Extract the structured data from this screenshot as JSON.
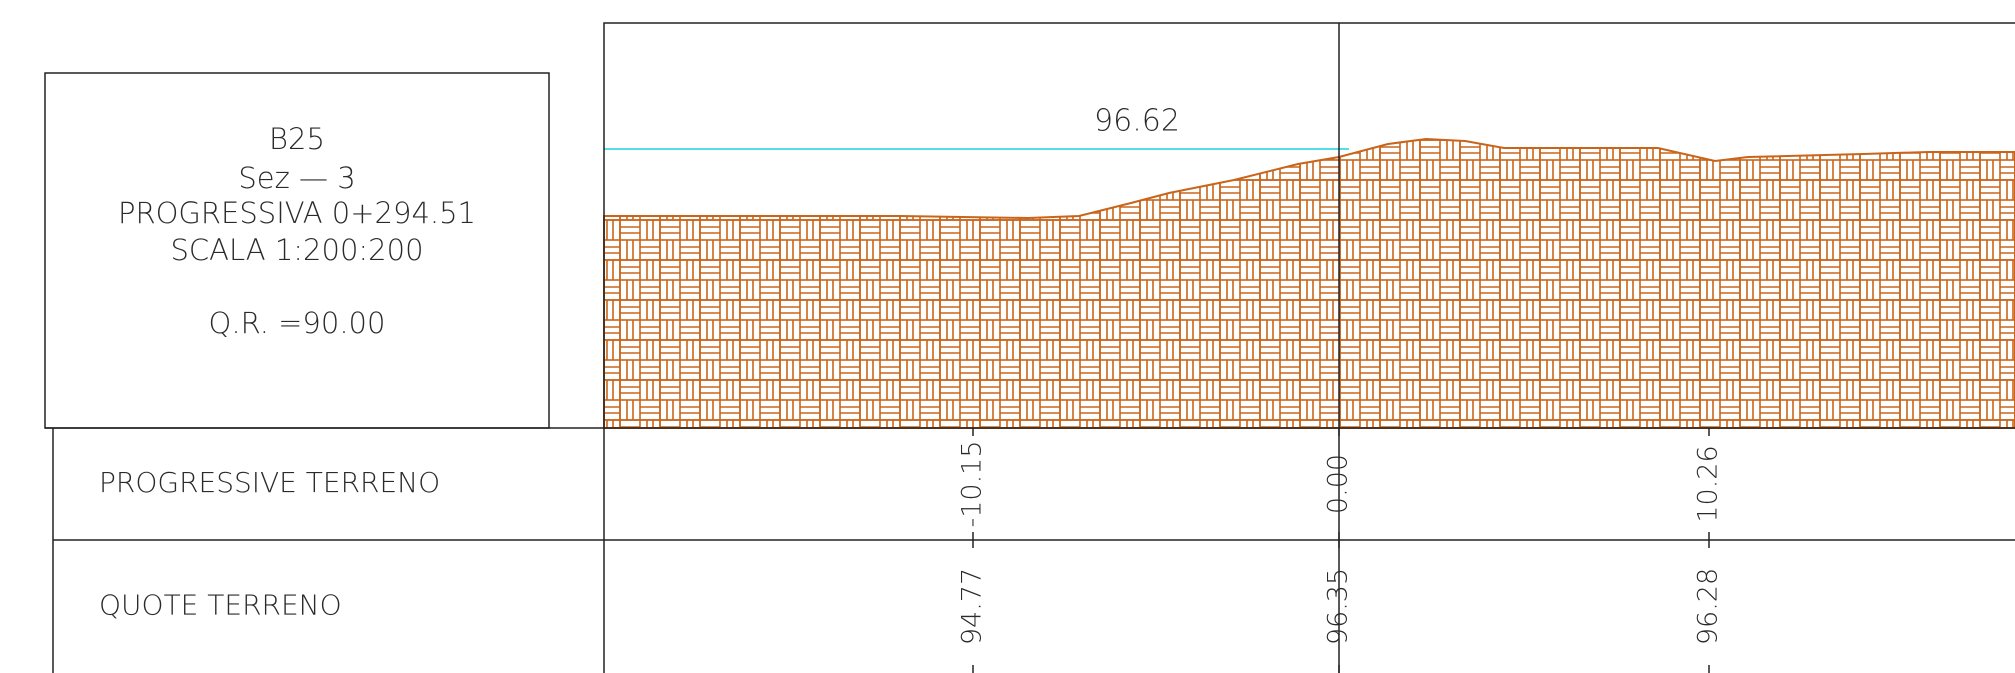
{
  "title_block": {
    "lines": [
      "B25",
      "Sez — 3",
      "PROGRESSIVA 0+294.51",
      "SCALA 1:200:200",
      "Q.R. =90.00"
    ]
  },
  "reference_level": "96.62",
  "table": {
    "rows": [
      {
        "label": "PROGRESSIVE TERRENO",
        "values": [
          "-10.15",
          "0.00",
          "10.26"
        ]
      },
      {
        "label": "QUOTE TERRENO",
        "values": [
          "94.77",
          "96.35",
          "96.28"
        ]
      }
    ]
  }
}
